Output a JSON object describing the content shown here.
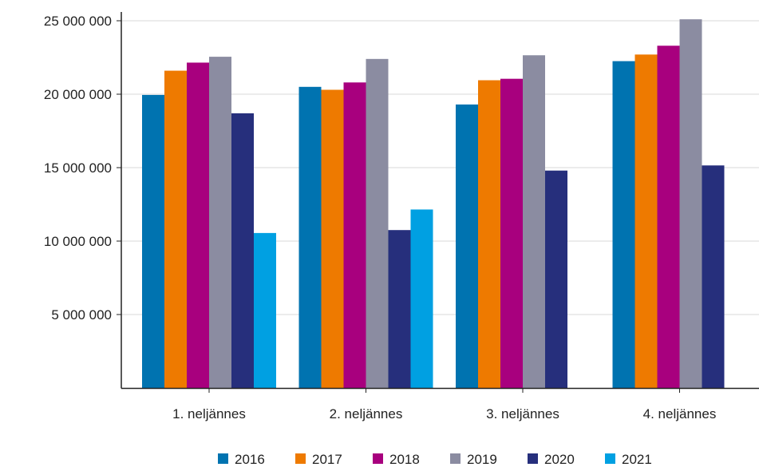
{
  "chart_data": {
    "type": "bar",
    "categories": [
      "1. neljännes",
      "2. neljännes",
      "3. neljännes",
      "4. neljännes"
    ],
    "series": [
      {
        "name": "2016",
        "color": "#0073b0",
        "values": [
          19950000,
          20500000,
          19300000,
          22250000
        ]
      },
      {
        "name": "2017",
        "color": "#ee7a00",
        "values": [
          21600000,
          20300000,
          20950000,
          22700000
        ]
      },
      {
        "name": "2018",
        "color": "#a8007e",
        "values": [
          22150000,
          20800000,
          21050000,
          23300000
        ]
      },
      {
        "name": "2019",
        "color": "#8b8ca1",
        "values": [
          22550000,
          22400000,
          22650000,
          25100000
        ]
      },
      {
        "name": "2020",
        "color": "#262f7c",
        "values": [
          18700000,
          10750000,
          14800000,
          15150000
        ]
      },
      {
        "name": "2021",
        "color": "#00a0e2",
        "values": [
          10550000,
          12150000,
          null,
          null
        ]
      }
    ],
    "y_ticks": [
      5000000,
      10000000,
      15000000,
      20000000,
      25000000
    ],
    "y_tick_labels": [
      "5 000 000",
      "10 000 000",
      "15 000 000",
      "20 000 000",
      "25 000 000"
    ],
    "ylim": [
      0,
      25000000
    ],
    "grid": true,
    "legend_position": "bottom",
    "title": "",
    "xlabel": "",
    "ylabel": ""
  }
}
